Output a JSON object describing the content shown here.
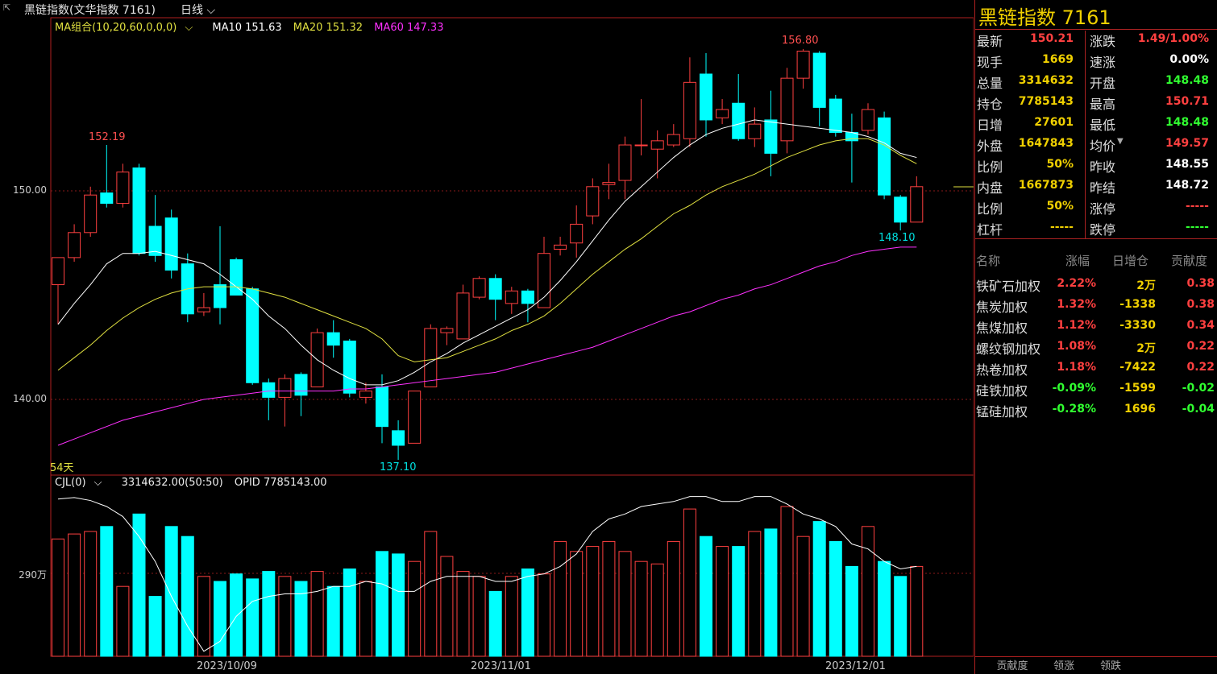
{
  "header": {
    "title": "黑链指数(文华指数 7161)",
    "period": "日线",
    "period_icon": "chevron-down-icon"
  },
  "main_legend": {
    "ma_group": "MA组合(10,20,60,0,0,0)",
    "ma10": "MA10 151.63",
    "ma20": "MA20 151.32",
    "ma60": "MA60 147.33",
    "colors": {
      "ma10": "#ffffff",
      "ma20": "#e0e040",
      "ma60": "#ff30ff",
      "up": "#ff4040",
      "down": "#00ffff"
    }
  },
  "price_axis": [
    "150.00",
    "140.00"
  ],
  "days_label": "54天",
  "annotations": {
    "high1": "152.19",
    "high2": "156.80",
    "low1": "137.10",
    "low2": "148.10"
  },
  "volume_legend": {
    "cjl": "CJL(0)",
    "values": "3314632.00(50:50)",
    "opid": "OPID 7785143.00"
  },
  "volume_axis": [
    "290万"
  ],
  "dates": [
    "2023/10/09",
    "2023/11/01",
    "2023/12/01"
  ],
  "candles": [
    [
      145.5,
      146.8,
      146.8,
      143.6
    ],
    [
      146.8,
      148.0,
      148.4,
      146.6
    ],
    [
      148.0,
      149.8,
      150.2,
      147.8
    ],
    [
      149.9,
      149.4,
      152.2,
      149.2
    ],
    [
      149.4,
      150.9,
      151.3,
      149.2
    ],
    [
      151.1,
      147.0,
      151.3,
      146.9
    ],
    [
      148.3,
      146.9,
      149.8,
      146.6
    ],
    [
      148.7,
      146.2,
      149.1,
      145.8
    ],
    [
      146.5,
      144.1,
      147.0,
      143.7
    ],
    [
      144.2,
      144.4,
      145.1,
      144.0
    ],
    [
      145.5,
      144.4,
      148.3,
      143.6
    ],
    [
      146.7,
      145.0,
      146.8,
      145.0
    ],
    [
      145.3,
      140.8,
      145.4,
      140.7
    ],
    [
      140.8,
      140.1,
      141.0,
      139.0
    ],
    [
      140.1,
      141.0,
      141.2,
      138.7
    ],
    [
      141.2,
      140.2,
      141.3,
      139.2
    ],
    [
      140.6,
      143.2,
      143.4,
      140.6
    ],
    [
      143.2,
      142.6,
      143.8,
      142.0
    ],
    [
      142.8,
      140.3,
      142.9,
      140.1
    ],
    [
      140.1,
      140.4,
      140.8,
      139.8
    ],
    [
      140.6,
      138.7,
      141.2,
      137.9
    ],
    [
      138.5,
      137.8,
      139.0,
      137.1
    ],
    [
      137.9,
      140.4,
      140.4,
      137.9
    ],
    [
      140.6,
      143.4,
      143.6,
      140.6
    ],
    [
      143.2,
      143.4,
      143.5,
      142.6
    ],
    [
      142.9,
      145.1,
      145.5,
      142.9
    ],
    [
      144.9,
      145.8,
      145.9,
      144.8
    ],
    [
      145.8,
      144.8,
      146.0,
      143.8
    ],
    [
      144.6,
      145.2,
      145.4,
      144.1
    ],
    [
      145.2,
      144.6,
      145.3,
      143.7
    ],
    [
      144.4,
      147.0,
      147.8,
      144.4
    ],
    [
      147.2,
      147.4,
      147.8,
      146.9
    ],
    [
      147.5,
      148.4,
      149.3,
      146.8
    ],
    [
      148.8,
      150.2,
      150.6,
      148.4
    ],
    [
      150.3,
      150.4,
      151.3,
      149.6
    ],
    [
      150.5,
      152.2,
      152.6,
      149.6
    ],
    [
      152.2,
      152.2,
      154.4,
      151.7
    ],
    [
      152.0,
      152.4,
      152.9,
      150.6
    ],
    [
      152.2,
      152.7,
      153.2,
      152.1
    ],
    [
      152.5,
      155.2,
      156.4,
      152.1
    ],
    [
      155.6,
      153.4,
      156.6,
      152.6
    ],
    [
      153.5,
      153.9,
      154.4,
      153.2
    ],
    [
      154.2,
      152.5,
      155.6,
      152.4
    ],
    [
      152.5,
      153.2,
      154.0,
      152.1
    ],
    [
      153.4,
      151.8,
      154.8,
      150.7
    ],
    [
      152.4,
      155.4,
      155.9,
      151.8
    ],
    [
      155.4,
      156.7,
      156.8,
      154.9
    ],
    [
      156.6,
      154.0,
      156.7,
      153.1
    ],
    [
      154.4,
      152.8,
      154.6,
      152.6
    ],
    [
      152.8,
      152.4,
      153.7,
      150.4
    ],
    [
      152.9,
      153.9,
      154.2,
      152.7
    ],
    [
      153.5,
      149.8,
      153.8,
      149.6
    ],
    [
      149.7,
      148.5,
      149.8,
      148.1
    ],
    [
      148.5,
      150.2,
      150.7,
      148.5
    ]
  ],
  "ma10": [
    143.6,
    144.6,
    145.5,
    146.5,
    147.0,
    147.0,
    147.1,
    146.9,
    146.7,
    146.5,
    146.0,
    145.4,
    144.8,
    144.0,
    143.4,
    142.6,
    141.9,
    141.4,
    141.0,
    140.7,
    140.7,
    140.9,
    141.3,
    141.8,
    142.2,
    142.7,
    143.1,
    143.5,
    143.9,
    144.3,
    144.9,
    145.7,
    146.6,
    147.6,
    148.6,
    149.5,
    150.2,
    150.9,
    151.6,
    152.2,
    152.7,
    153.0,
    153.2,
    153.4,
    153.3,
    153.2,
    153.1,
    153.0,
    152.9,
    152.8,
    152.6,
    152.3,
    151.8,
    151.6
  ],
  "ma20": [
    141.4,
    142.0,
    142.6,
    143.3,
    143.9,
    144.4,
    144.8,
    145.1,
    145.3,
    145.4,
    145.4,
    145.4,
    145.3,
    145.1,
    144.9,
    144.6,
    144.3,
    144.0,
    143.7,
    143.4,
    142.9,
    142.1,
    141.8,
    141.9,
    142.0,
    142.3,
    142.6,
    142.9,
    143.3,
    143.6,
    144.0,
    144.6,
    145.3,
    146.0,
    146.6,
    147.2,
    147.7,
    148.3,
    148.9,
    149.3,
    149.8,
    150.2,
    150.5,
    150.8,
    151.2,
    151.6,
    151.9,
    152.2,
    152.4,
    152.5,
    152.5,
    152.2,
    151.7,
    151.3
  ],
  "ma60": [
    137.8,
    138.1,
    138.4,
    138.7,
    139.0,
    139.2,
    139.4,
    139.6,
    139.8,
    140.0,
    140.1,
    140.2,
    140.3,
    140.4,
    140.4,
    140.4,
    140.4,
    140.4,
    140.5,
    140.5,
    140.6,
    140.7,
    140.8,
    140.9,
    141.0,
    141.1,
    141.2,
    141.3,
    141.5,
    141.7,
    141.9,
    142.1,
    142.3,
    142.5,
    142.8,
    143.1,
    143.4,
    143.7,
    144.0,
    144.2,
    144.5,
    144.8,
    145.0,
    145.3,
    145.5,
    145.8,
    146.1,
    146.4,
    146.6,
    146.9,
    147.1,
    147.2,
    147.3,
    147.3
  ],
  "volume": [
    2.35,
    2.45,
    2.5,
    2.6,
    1.4,
    2.85,
    1.2,
    2.6,
    2.4,
    1.6,
    1.5,
    1.65,
    1.55,
    1.7,
    1.6,
    1.5,
    1.7,
    1.4,
    1.75,
    1.5,
    2.1,
    2.05,
    1.9,
    2.5,
    2.0,
    1.7,
    1.6,
    1.3,
    1.6,
    1.75,
    1.65,
    2.3,
    2.1,
    2.2,
    2.3,
    2.1,
    1.9,
    1.85,
    2.3,
    2.95,
    2.4,
    2.2,
    2.2,
    2.5,
    2.55,
    3.0,
    2.4,
    2.7,
    2.3,
    1.8,
    2.6,
    1.9,
    1.6,
    1.8
  ],
  "opid": [
    3.15,
    3.18,
    3.12,
    3.0,
    2.8,
    2.4,
    1.9,
    1.2,
    0.6,
    0.1,
    0.3,
    0.8,
    1.1,
    1.2,
    1.25,
    1.25,
    1.3,
    1.4,
    1.4,
    1.5,
    1.45,
    1.3,
    1.3,
    1.5,
    1.6,
    1.6,
    1.6,
    1.5,
    1.5,
    1.6,
    1.65,
    1.8,
    2.05,
    2.5,
    2.75,
    2.85,
    3.0,
    3.05,
    3.1,
    3.2,
    3.2,
    3.1,
    3.1,
    3.2,
    3.2,
    3.05,
    2.85,
    2.75,
    2.6,
    2.25,
    2.15,
    1.9,
    1.75,
    1.8
  ],
  "quote": {
    "title": "黑链指数  7161",
    "left": [
      [
        "最新",
        "150.21",
        "#ff4040"
      ],
      [
        "现手",
        "1669",
        "#f0d000"
      ],
      [
        "总量",
        "3314632",
        "#f0d000"
      ],
      [
        "持仓",
        "7785143",
        "#f0d000"
      ],
      [
        "日增",
        "27601",
        "#f0d000"
      ],
      [
        "外盘",
        "1647843",
        "#f0d000"
      ],
      [
        "比例",
        "50%",
        "#f0d000"
      ],
      [
        "内盘",
        "1667873",
        "#f0d000"
      ],
      [
        "比例",
        "50%",
        "#f0d000"
      ],
      [
        "杠杆",
        "-----",
        "#f0d000"
      ]
    ],
    "right": [
      [
        "涨跌",
        "1.49/1.00%",
        "#ff4040"
      ],
      [
        "速涨",
        "0.00%",
        "#ffffff"
      ],
      [
        "开盘",
        "148.48",
        "#30ff30"
      ],
      [
        "最高",
        "150.71",
        "#ff4040"
      ],
      [
        "最低",
        "148.48",
        "#30ff30"
      ],
      [
        "均价",
        "149.57",
        "#ff4040"
      ],
      [
        "昨收",
        "148.55",
        "#ffffff"
      ],
      [
        "昨结",
        "148.72",
        "#ffffff"
      ],
      [
        "涨停",
        "-----",
        "#ff4040"
      ],
      [
        "跌停",
        "-----",
        "#30ff30"
      ]
    ],
    "avg_icon": "triangle-down-icon"
  },
  "contrib": {
    "headers": [
      "名称",
      "涨幅",
      "日增仓",
      "贡献度"
    ],
    "rows": [
      [
        "铁矿石加权",
        "2.22%",
        "2万",
        "0.38",
        "#ff4040",
        "#ff4040"
      ],
      [
        "焦炭加权",
        "1.32%",
        "-1338",
        "0.38",
        "#ff4040",
        "#ff4040"
      ],
      [
        "焦煤加权",
        "1.12%",
        "-3330",
        "0.34",
        "#ff4040",
        "#ff4040"
      ],
      [
        "螺纹钢加权",
        "1.08%",
        "2万",
        "0.22",
        "#ff4040",
        "#ff4040"
      ],
      [
        "热卷加权",
        "1.18%",
        "-7422",
        "0.22",
        "#ff4040",
        "#ff4040"
      ],
      [
        "硅铁加权",
        "-0.09%",
        "-1599",
        "-0.02",
        "#30ff30",
        "#30ff30"
      ],
      [
        "锰硅加权",
        "-0.28%",
        "1696",
        "-0.04",
        "#30ff30",
        "#30ff30"
      ]
    ]
  },
  "tabs": [
    "贡献度",
    "领涨",
    "领跌"
  ]
}
